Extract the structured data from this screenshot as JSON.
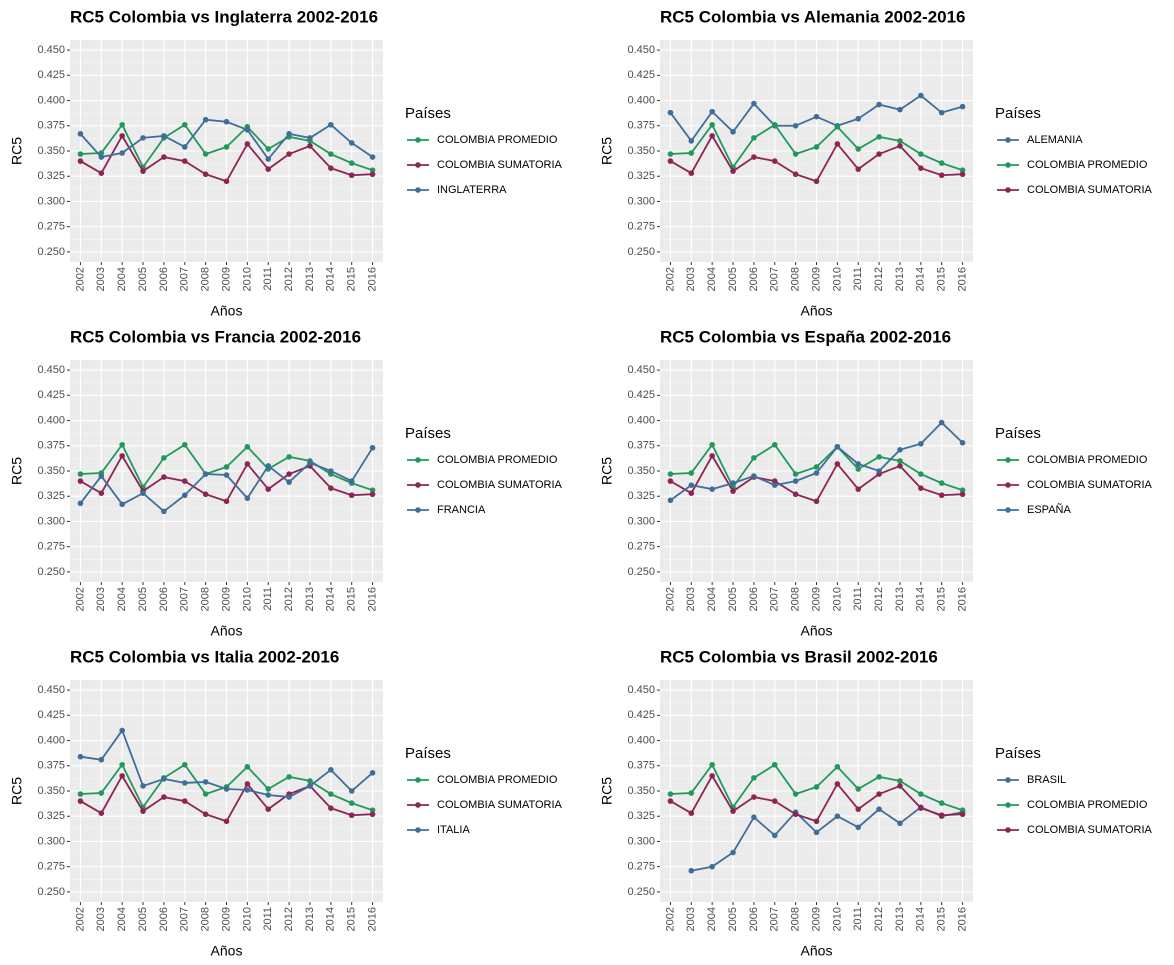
{
  "chart_data": [
    {
      "type": "line",
      "title": "RC5 Colombia vs Inglaterra 2002-2016",
      "x_label": "Años",
      "y_label": "RC5",
      "legend_title": "Países",
      "categories": [
        "2002",
        "2003",
        "2004",
        "2005",
        "2006",
        "2007",
        "2008",
        "2009",
        "2010",
        "2011",
        "2012",
        "2013",
        "2014",
        "2015",
        "2016"
      ],
      "series": [
        {
          "name": "COLOMBIA PROMEDIO",
          "color": "#21995a",
          "values": [
            0.347,
            0.348,
            0.376,
            0.334,
            0.363,
            0.376,
            0.347,
            0.354,
            0.374,
            0.352,
            0.364,
            0.36,
            0.347,
            0.338,
            0.331
          ]
        },
        {
          "name": "COLOMBIA SUMATORIA",
          "color": "#8e2452",
          "values": [
            0.34,
            0.328,
            0.365,
            0.33,
            0.344,
            0.34,
            0.327,
            0.32,
            0.357,
            0.332,
            0.347,
            0.355,
            0.333,
            0.326,
            0.327
          ]
        },
        {
          "name": "INGLATERRA",
          "color": "#3f6e9a",
          "values": [
            0.367,
            0.344,
            0.348,
            0.363,
            0.365,
            0.354,
            0.381,
            0.379,
            0.371,
            0.342,
            0.367,
            0.363,
            0.376,
            0.358,
            0.344
          ]
        }
      ],
      "ylim": [
        0.24,
        0.46
      ],
      "yticks": [
        {
          "value": 0.25,
          "label": "0.250"
        },
        {
          "value": 0.275,
          "label": "0.275"
        },
        {
          "value": 0.3,
          "label": "0.300"
        },
        {
          "value": 0.325,
          "label": "0.325"
        },
        {
          "value": 0.35,
          "label": "0.350"
        },
        {
          "value": 0.375,
          "label": "0.375"
        },
        {
          "value": 0.4,
          "label": "0.400"
        },
        {
          "value": 0.425,
          "label": "0.425"
        },
        {
          "value": 0.45,
          "label": "0.450"
        }
      ],
      "grid": true
    },
    {
      "type": "line",
      "title": "RC5 Colombia vs Alemania 2002-2016",
      "x_label": "Años",
      "y_label": "RC5",
      "legend_title": "Países",
      "categories": [
        "2002",
        "2003",
        "2004",
        "2005",
        "2006",
        "2007",
        "2008",
        "2009",
        "2010",
        "2011",
        "2012",
        "2013",
        "2014",
        "2015",
        "2016"
      ],
      "series": [
        {
          "name": "ALEMANIA",
          "color": "#3f6e9a",
          "values": [
            0.388,
            0.36,
            0.389,
            0.369,
            0.397,
            0.375,
            0.375,
            0.384,
            0.375,
            0.382,
            0.396,
            0.391,
            0.405,
            0.388,
            0.394
          ]
        },
        {
          "name": "COLOMBIA PROMEDIO",
          "color": "#21995a",
          "values": [
            0.347,
            0.348,
            0.376,
            0.334,
            0.363,
            0.376,
            0.347,
            0.354,
            0.374,
            0.352,
            0.364,
            0.36,
            0.347,
            0.338,
            0.331
          ]
        },
        {
          "name": "COLOMBIA SUMATORIA",
          "color": "#8e2452",
          "values": [
            0.34,
            0.328,
            0.365,
            0.33,
            0.344,
            0.34,
            0.327,
            0.32,
            0.357,
            0.332,
            0.347,
            0.355,
            0.333,
            0.326,
            0.327
          ]
        }
      ],
      "ylim": [
        0.24,
        0.46
      ],
      "yticks": [
        {
          "value": 0.25,
          "label": "0.250"
        },
        {
          "value": 0.275,
          "label": "0.275"
        },
        {
          "value": 0.3,
          "label": "0.300"
        },
        {
          "value": 0.325,
          "label": "0.325"
        },
        {
          "value": 0.35,
          "label": "0.350"
        },
        {
          "value": 0.375,
          "label": "0.375"
        },
        {
          "value": 0.4,
          "label": "0.400"
        },
        {
          "value": 0.425,
          "label": "0.425"
        },
        {
          "value": 0.45,
          "label": "0.450"
        }
      ],
      "grid": true
    },
    {
      "type": "line",
      "title": "RC5 Colombia vs Francia 2002-2016",
      "x_label": "Años",
      "y_label": "RC5",
      "legend_title": "Países",
      "categories": [
        "2002",
        "2003",
        "2004",
        "2005",
        "2006",
        "2007",
        "2008",
        "2009",
        "2010",
        "2011",
        "2012",
        "2013",
        "2014",
        "2015",
        "2016"
      ],
      "series": [
        {
          "name": "COLOMBIA PROMEDIO",
          "color": "#21995a",
          "values": [
            0.347,
            0.348,
            0.376,
            0.334,
            0.363,
            0.376,
            0.347,
            0.354,
            0.374,
            0.352,
            0.364,
            0.36,
            0.347,
            0.338,
            0.331
          ]
        },
        {
          "name": "COLOMBIA SUMATORIA",
          "color": "#8e2452",
          "values": [
            0.34,
            0.328,
            0.365,
            0.33,
            0.344,
            0.34,
            0.327,
            0.32,
            0.357,
            0.332,
            0.347,
            0.355,
            0.333,
            0.326,
            0.327
          ]
        },
        {
          "name": "FRANCIA",
          "color": "#3f6e9a",
          "values": [
            0.318,
            0.345,
            0.317,
            0.328,
            0.31,
            0.326,
            0.347,
            0.346,
            0.323,
            0.355,
            0.339,
            0.358,
            0.35,
            0.34,
            0.373
          ]
        }
      ],
      "ylim": [
        0.24,
        0.46
      ],
      "yticks": [
        {
          "value": 0.25,
          "label": "0.250"
        },
        {
          "value": 0.275,
          "label": "0.275"
        },
        {
          "value": 0.3,
          "label": "0.300"
        },
        {
          "value": 0.325,
          "label": "0.325"
        },
        {
          "value": 0.35,
          "label": "0.350"
        },
        {
          "value": 0.375,
          "label": "0.375"
        },
        {
          "value": 0.4,
          "label": "0.400"
        },
        {
          "value": 0.425,
          "label": "0.425"
        },
        {
          "value": 0.45,
          "label": "0.450"
        }
      ],
      "grid": true
    },
    {
      "type": "line",
      "title": "RC5 Colombia vs España 2002-2016",
      "x_label": "Años",
      "y_label": "RC5",
      "legend_title": "Países",
      "categories": [
        "2002",
        "2003",
        "2004",
        "2005",
        "2006",
        "2007",
        "2008",
        "2009",
        "2010",
        "2011",
        "2012",
        "2013",
        "2014",
        "2015",
        "2016"
      ],
      "series": [
        {
          "name": "COLOMBIA PROMEDIO",
          "color": "#21995a",
          "values": [
            0.347,
            0.348,
            0.376,
            0.334,
            0.363,
            0.376,
            0.347,
            0.354,
            0.374,
            0.352,
            0.364,
            0.36,
            0.347,
            0.338,
            0.331
          ]
        },
        {
          "name": "COLOMBIA SUMATORIA",
          "color": "#8e2452",
          "values": [
            0.34,
            0.328,
            0.365,
            0.33,
            0.344,
            0.34,
            0.327,
            0.32,
            0.357,
            0.332,
            0.347,
            0.355,
            0.333,
            0.326,
            0.327
          ]
        },
        {
          "name": "ESPAÑA",
          "color": "#3f6e9a",
          "values": [
            0.321,
            0.336,
            0.332,
            0.338,
            0.345,
            0.336,
            0.34,
            0.348,
            0.374,
            0.357,
            0.35,
            0.371,
            0.377,
            0.398,
            0.378
          ]
        }
      ],
      "ylim": [
        0.24,
        0.46
      ],
      "yticks": [
        {
          "value": 0.25,
          "label": "0.250"
        },
        {
          "value": 0.275,
          "label": "0.275"
        },
        {
          "value": 0.3,
          "label": "0.300"
        },
        {
          "value": 0.325,
          "label": "0.325"
        },
        {
          "value": 0.35,
          "label": "0.350"
        },
        {
          "value": 0.375,
          "label": "0.375"
        },
        {
          "value": 0.4,
          "label": "0.400"
        },
        {
          "value": 0.425,
          "label": "0.425"
        },
        {
          "value": 0.45,
          "label": "0.450"
        }
      ],
      "grid": true
    },
    {
      "type": "line",
      "title": "RC5 Colombia vs Italia 2002-2016",
      "x_label": "Años",
      "y_label": "RC5",
      "legend_title": "Países",
      "categories": [
        "2002",
        "2003",
        "2004",
        "2005",
        "2006",
        "2007",
        "2008",
        "2009",
        "2010",
        "2011",
        "2012",
        "2013",
        "2014",
        "2015",
        "2016"
      ],
      "series": [
        {
          "name": "COLOMBIA PROMEDIO",
          "color": "#21995a",
          "values": [
            0.347,
            0.348,
            0.376,
            0.334,
            0.363,
            0.376,
            0.347,
            0.354,
            0.374,
            0.352,
            0.364,
            0.36,
            0.347,
            0.338,
            0.331
          ]
        },
        {
          "name": "COLOMBIA SUMATORIA",
          "color": "#8e2452",
          "values": [
            0.34,
            0.328,
            0.365,
            0.33,
            0.344,
            0.34,
            0.327,
            0.32,
            0.357,
            0.332,
            0.347,
            0.355,
            0.333,
            0.326,
            0.327
          ]
        },
        {
          "name": "ITALIA",
          "color": "#3f6e9a",
          "values": [
            0.384,
            0.381,
            0.41,
            0.355,
            0.362,
            0.358,
            0.359,
            0.352,
            0.351,
            0.346,
            0.344,
            0.355,
            0.371,
            0.35,
            0.368
          ]
        }
      ],
      "ylim": [
        0.24,
        0.46
      ],
      "yticks": [
        {
          "value": 0.25,
          "label": "0.250"
        },
        {
          "value": 0.275,
          "label": "0.275"
        },
        {
          "value": 0.3,
          "label": "0.300"
        },
        {
          "value": 0.325,
          "label": "0.325"
        },
        {
          "value": 0.35,
          "label": "0.350"
        },
        {
          "value": 0.375,
          "label": "0.375"
        },
        {
          "value": 0.4,
          "label": "0.400"
        },
        {
          "value": 0.425,
          "label": "0.425"
        },
        {
          "value": 0.45,
          "label": "0.450"
        }
      ],
      "grid": true
    },
    {
      "type": "line",
      "title": "RC5 Colombia vs Brasil 2002-2016",
      "x_label": "Años",
      "y_label": "RC5",
      "legend_title": "Países",
      "categories": [
        "2002",
        "2003",
        "2004",
        "2005",
        "2006",
        "2007",
        "2008",
        "2009",
        "2010",
        "2011",
        "2012",
        "2013",
        "2014",
        "2015",
        "2016"
      ],
      "series": [
        {
          "name": "BRASIL",
          "color": "#3f6e9a",
          "values": [
            null,
            0.271,
            0.275,
            0.289,
            0.324,
            0.306,
            0.329,
            0.309,
            0.325,
            0.314,
            0.332,
            0.318,
            0.334,
            0.325,
            0.329
          ]
        },
        {
          "name": "COLOMBIA PROMEDIO",
          "color": "#21995a",
          "values": [
            0.347,
            0.348,
            0.376,
            0.334,
            0.363,
            0.376,
            0.347,
            0.354,
            0.374,
            0.352,
            0.364,
            0.36,
            0.347,
            0.338,
            0.331
          ]
        },
        {
          "name": "COLOMBIA SUMATORIA",
          "color": "#8e2452",
          "values": [
            0.34,
            0.328,
            0.365,
            0.33,
            0.344,
            0.34,
            0.327,
            0.32,
            0.357,
            0.332,
            0.347,
            0.355,
            0.333,
            0.326,
            0.327
          ]
        }
      ],
      "ylim": [
        0.24,
        0.46
      ],
      "yticks": [
        {
          "value": 0.25,
          "label": "0.250"
        },
        {
          "value": 0.275,
          "label": "0.275"
        },
        {
          "value": 0.3,
          "label": "0.300"
        },
        {
          "value": 0.325,
          "label": "0.325"
        },
        {
          "value": 0.35,
          "label": "0.350"
        },
        {
          "value": 0.375,
          "label": "0.375"
        },
        {
          "value": 0.4,
          "label": "0.400"
        },
        {
          "value": 0.425,
          "label": "0.425"
        },
        {
          "value": 0.45,
          "label": "0.450"
        }
      ],
      "grid": true
    }
  ]
}
